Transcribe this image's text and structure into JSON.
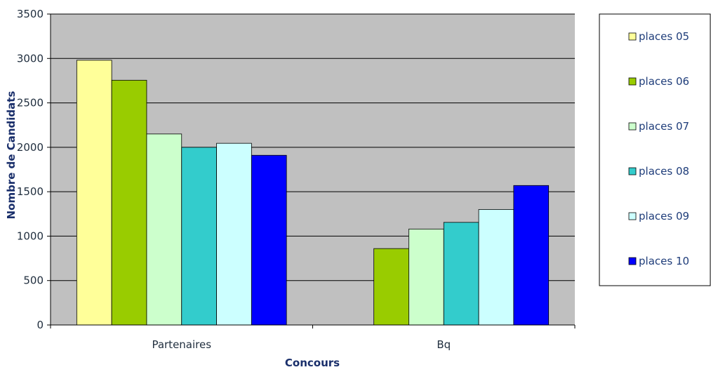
{
  "chart_data": {
    "type": "bar",
    "title": "",
    "xlabel": "Concours",
    "ylabel": "Nombre de Candidats",
    "categories": [
      "Partenaires",
      "Bq"
    ],
    "ylim": [
      0,
      3500
    ],
    "yticks": [
      0,
      500,
      1000,
      1500,
      2000,
      2500,
      3000,
      3500
    ],
    "ytick_labels": [
      "0",
      "500",
      "1000",
      "1500",
      "2000",
      "2500",
      "3000",
      "3500"
    ],
    "grid": true,
    "legend_position": "right",
    "plot_background": "#c0c0c0",
    "series": [
      {
        "name": "places 05",
        "color": "#ffff99",
        "values": [
          2980,
          null
        ]
      },
      {
        "name": "places 06",
        "color": "#99cc00",
        "values": [
          2755,
          860
        ]
      },
      {
        "name": "places 07",
        "color": "#ccffcc",
        "values": [
          2150,
          1080
        ]
      },
      {
        "name": "places 08",
        "color": "#33cccc",
        "values": [
          2000,
          1155
        ]
      },
      {
        "name": "places 09",
        "color": "#ccffff",
        "values": [
          2045,
          1300
        ]
      },
      {
        "name": "places 10",
        "color": "#0000ff",
        "values": [
          1910,
          1570
        ]
      }
    ]
  }
}
